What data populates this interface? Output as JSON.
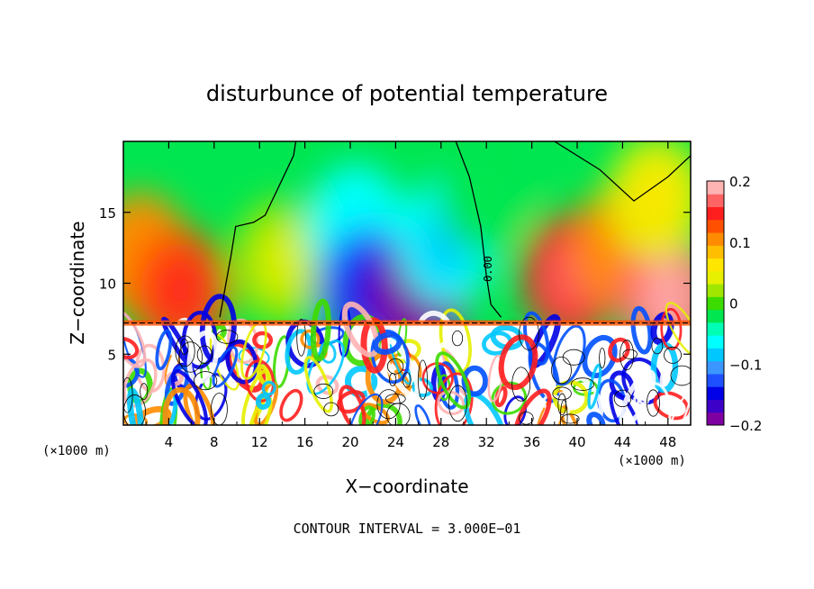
{
  "chart_data": {
    "type": "heatmap",
    "title": "disturbunce of potential temperature",
    "xlabel": "X−coordinate",
    "ylabel": "Z−coordinate",
    "x_unit_label": "(×1000 m)",
    "z_unit_label": "(×1000 m)",
    "footer": "CONTOUR INTERVAL = 3.000E−01",
    "contour_label": "0.00",
    "xlim": [
      0,
      50
    ],
    "ylim": [
      0,
      20
    ],
    "xticks": [
      4,
      8,
      12,
      16,
      20,
      24,
      28,
      32,
      36,
      40,
      44,
      48
    ],
    "xtick_labels": [
      "4",
      "8",
      "12",
      "16",
      "20",
      "24",
      "28",
      "32",
      "36",
      "40",
      "44",
      "48"
    ],
    "yticks": [
      5,
      10,
      15
    ],
    "ytick_labels": [
      "5",
      "10",
      "15"
    ],
    "colorbar": {
      "range": [
        -0.2,
        0.2
      ],
      "ticks": [
        0.2,
        0.1,
        0,
        -0.1,
        -0.2
      ],
      "tick_labels": [
        "0.2",
        "0.1",
        "0",
        "−0.1",
        "−0.2"
      ],
      "colors": [
        "#7f00a0",
        "#3c00c8",
        "#0000e6",
        "#1e50ff",
        "#3c96ff",
        "#00c8ff",
        "#00ffff",
        "#00ffb4",
        "#00e650",
        "#3cdc00",
        "#a0e600",
        "#e6f000",
        "#ffe600",
        "#ffbe00",
        "#ff8c00",
        "#ff5000",
        "#ff1e1e",
        "#ff6464",
        "#ffb4b4"
      ]
    },
    "interface_height": 7.2,
    "upper_anomalies": [
      {
        "x": 1.5,
        "z": 12.0,
        "value": 0.1
      },
      {
        "x": 5.0,
        "z": 9.5,
        "value": 0.12
      },
      {
        "x": 14.0,
        "z": 11.5,
        "value": 0.03
      },
      {
        "x": 20.5,
        "z": 14.0,
        "value": -0.06
      },
      {
        "x": 21.5,
        "z": 9.5,
        "value": -0.12
      },
      {
        "x": 26.0,
        "z": 9.0,
        "value": -0.18
      },
      {
        "x": 28.5,
        "z": 13.0,
        "value": -0.07
      },
      {
        "x": 32.0,
        "z": 16.5,
        "value": -0.02
      },
      {
        "x": 39.5,
        "z": 10.5,
        "value": 0.14
      },
      {
        "x": 44.0,
        "z": 12.5,
        "value": 0.1
      },
      {
        "x": 48.0,
        "z": 9.0,
        "value": 0.16
      },
      {
        "x": 47.0,
        "z": 16.0,
        "value": 0.05
      }
    ]
  }
}
